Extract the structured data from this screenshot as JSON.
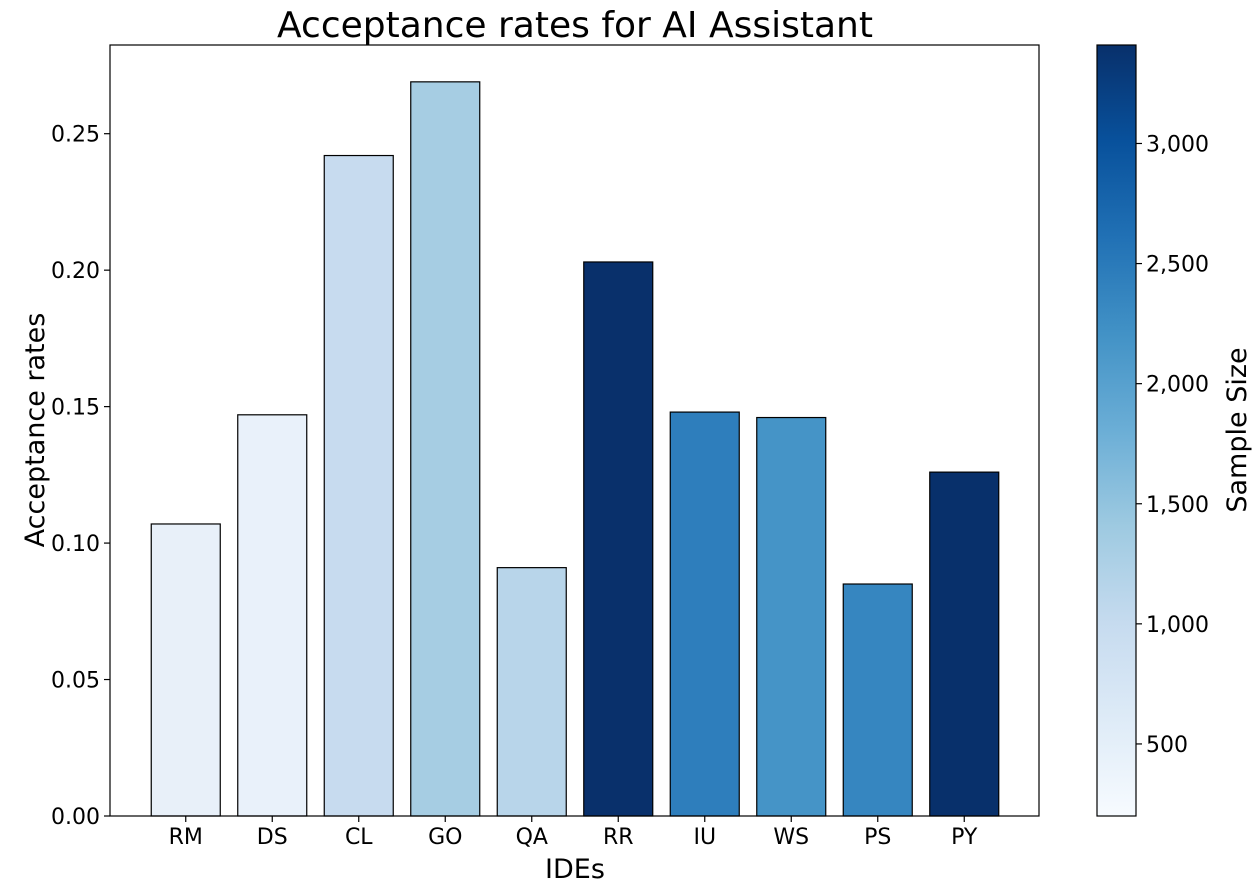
{
  "chart_data": {
    "type": "bar",
    "title": "Acceptance rates for AI Assistant",
    "xlabel": "IDEs",
    "ylabel": "Acceptance rates",
    "categories": [
      "RM",
      "DS",
      "CL",
      "GO",
      "QA",
      "RR",
      "IU",
      "WS",
      "PS",
      "PY"
    ],
    "values": [
      0.107,
      0.147,
      0.242,
      0.269,
      0.091,
      0.203,
      0.148,
      0.146,
      0.085,
      0.126
    ],
    "sample_sizes": [
      450,
      420,
      1000,
      1400,
      1130,
      3400,
      2350,
      1950,
      2280,
      3400
    ],
    "bar_colors": [
      "#e8f0f9",
      "#e9f1fa",
      "#c7dbef",
      "#a6cde3",
      "#b8d5ea",
      "#09306b",
      "#2e7ebc",
      "#4594c7",
      "#3686c0",
      "#08306b"
    ],
    "ylim": [
      0,
      0.2825
    ],
    "yticks": [
      "0.00",
      "0.05",
      "0.10",
      "0.15",
      "0.20",
      "0.25"
    ],
    "ytick_values": [
      0,
      0.05,
      0.1,
      0.15,
      0.2,
      0.25
    ],
    "colorbar": {
      "label": "Sample Size",
      "range": [
        200,
        3410
      ],
      "ticks": [
        "500",
        "1,000",
        "1,500",
        "2,000",
        "2,500",
        "3,000"
      ],
      "tick_values": [
        500,
        1000,
        1500,
        2000,
        2500,
        3000
      ],
      "colormap": "Blues",
      "stops": [
        "#f7fbff",
        "#deebf7",
        "#c6dbef",
        "#9ecae1",
        "#6baed6",
        "#4292c6",
        "#2171b5",
        "#08519c",
        "#08306b"
      ]
    },
    "grid": false,
    "edge_color": "#000000"
  }
}
